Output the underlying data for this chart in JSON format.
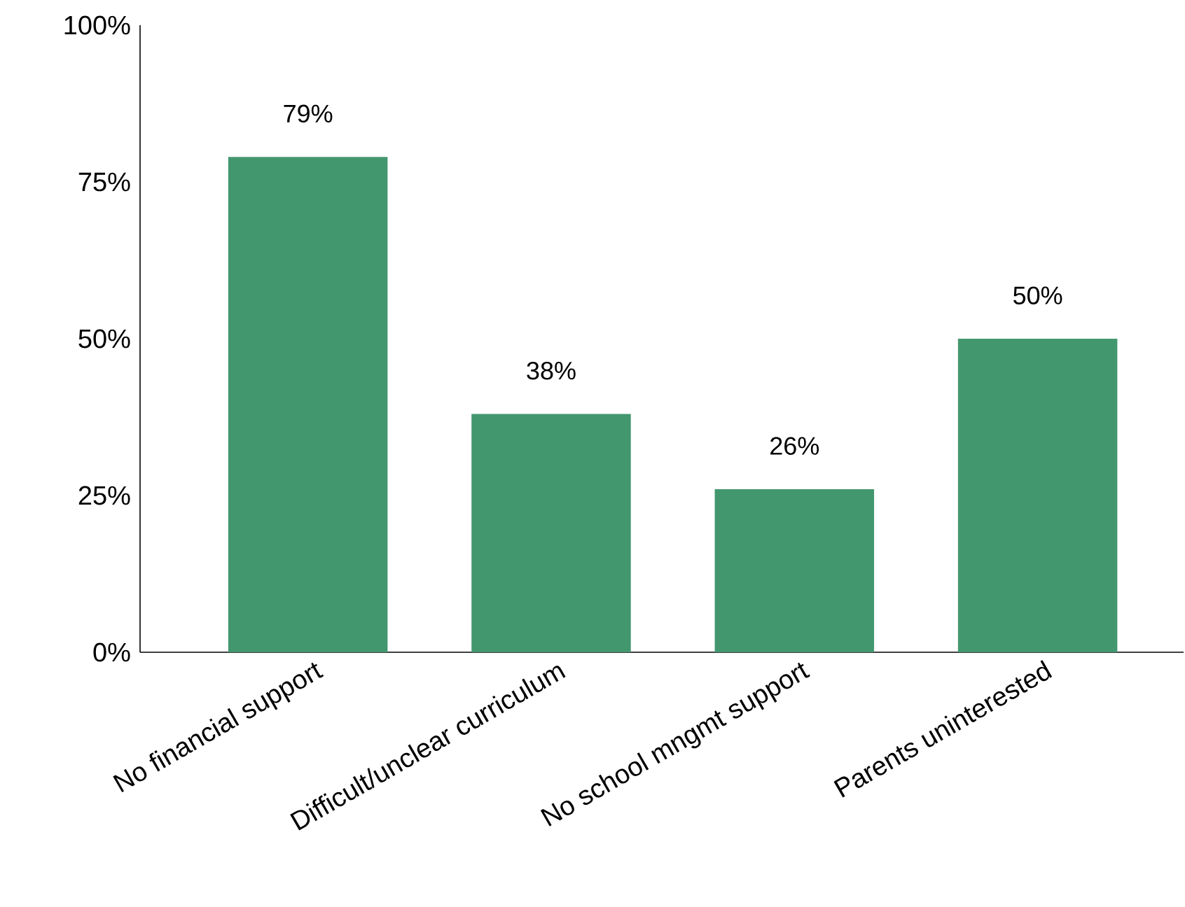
{
  "chart_data": {
    "type": "bar",
    "categories": [
      "No financial support",
      "Difficult/unclear curriculum",
      "No school mngmt support",
      "Parents uninterested"
    ],
    "values": [
      79,
      38,
      26,
      50
    ],
    "value_labels": [
      "79%",
      "38%",
      "26%",
      "50%"
    ],
    "color": "#43976f",
    "ylim": [
      0,
      100
    ],
    "yticks": [
      {
        "value": 0,
        "label": "0%"
      },
      {
        "value": 25,
        "label": "25%"
      },
      {
        "value": 50,
        "label": "50%"
      },
      {
        "value": 75,
        "label": "75%"
      },
      {
        "value": 100,
        "label": "100%"
      }
    ],
    "grid": false
  }
}
